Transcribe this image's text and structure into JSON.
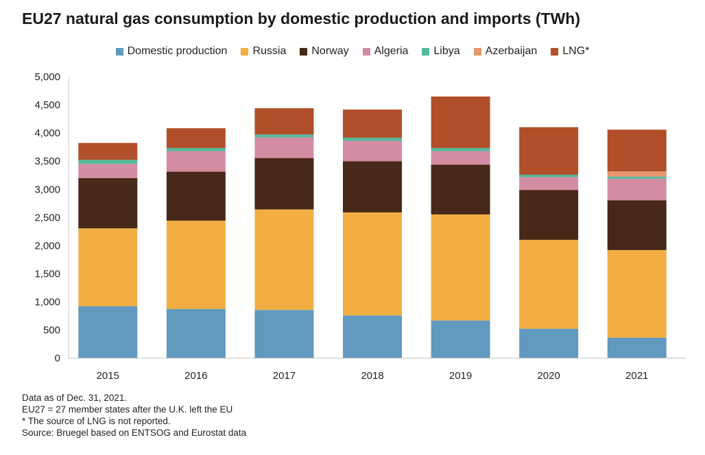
{
  "chart_data": {
    "type": "bar",
    "stacked": true,
    "title": "EU27 natural gas consumption by domestic production and imports (TWh)",
    "xlabel": "",
    "ylabel": "",
    "categories": [
      "2015",
      "2016",
      "2017",
      "2018",
      "2019",
      "2020",
      "2021"
    ],
    "ylim": [
      0,
      5000
    ],
    "yticks": [
      0,
      500,
      1000,
      1500,
      2000,
      2500,
      3000,
      3500,
      4000,
      4500,
      5000
    ],
    "ytick_labels": [
      "0",
      "500",
      "1,000",
      "1,500",
      "2,000",
      "2,500",
      "3,000",
      "3,500",
      "4,000",
      "4,500",
      "5,000"
    ],
    "grid": false,
    "legend_position": "top",
    "series": [
      {
        "name": "Domestic production",
        "color": "#6199bf",
        "values": [
          925,
          873,
          857,
          760,
          670,
          524,
          365
        ]
      },
      {
        "name": "Russia",
        "color": "#f2ae42",
        "values": [
          1381,
          1571,
          1786,
          1830,
          1884,
          1579,
          1556
        ]
      },
      {
        "name": "Norway",
        "color": "#482818",
        "values": [
          893,
          869,
          913,
          910,
          885,
          886,
          885
        ]
      },
      {
        "name": "Algeria",
        "color": "#d48ca2",
        "values": [
          252,
          365,
          366,
          361,
          239,
          226,
          381
        ]
      },
      {
        "name": "Libya",
        "color": "#55b89a",
        "values": [
          73,
          57,
          53,
          57,
          57,
          45,
          40
        ]
      },
      {
        "name": "Azerbaijan",
        "color": "#e8956c",
        "values": [
          0,
          0,
          0,
          0,
          0,
          0,
          91
        ]
      },
      {
        "name": "LNG*",
        "color": "#b04f29",
        "values": [
          300,
          350,
          466,
          499,
          914,
          844,
          742
        ]
      }
    ]
  },
  "notes": [
    "Data as of Dec. 31, 2021.",
    "EU27 = 27 member states after the U.K. left the EU",
    "* The source of LNG is not reported.",
    "Source: Bruegel based on ENTSOG and Eurostat data"
  ]
}
